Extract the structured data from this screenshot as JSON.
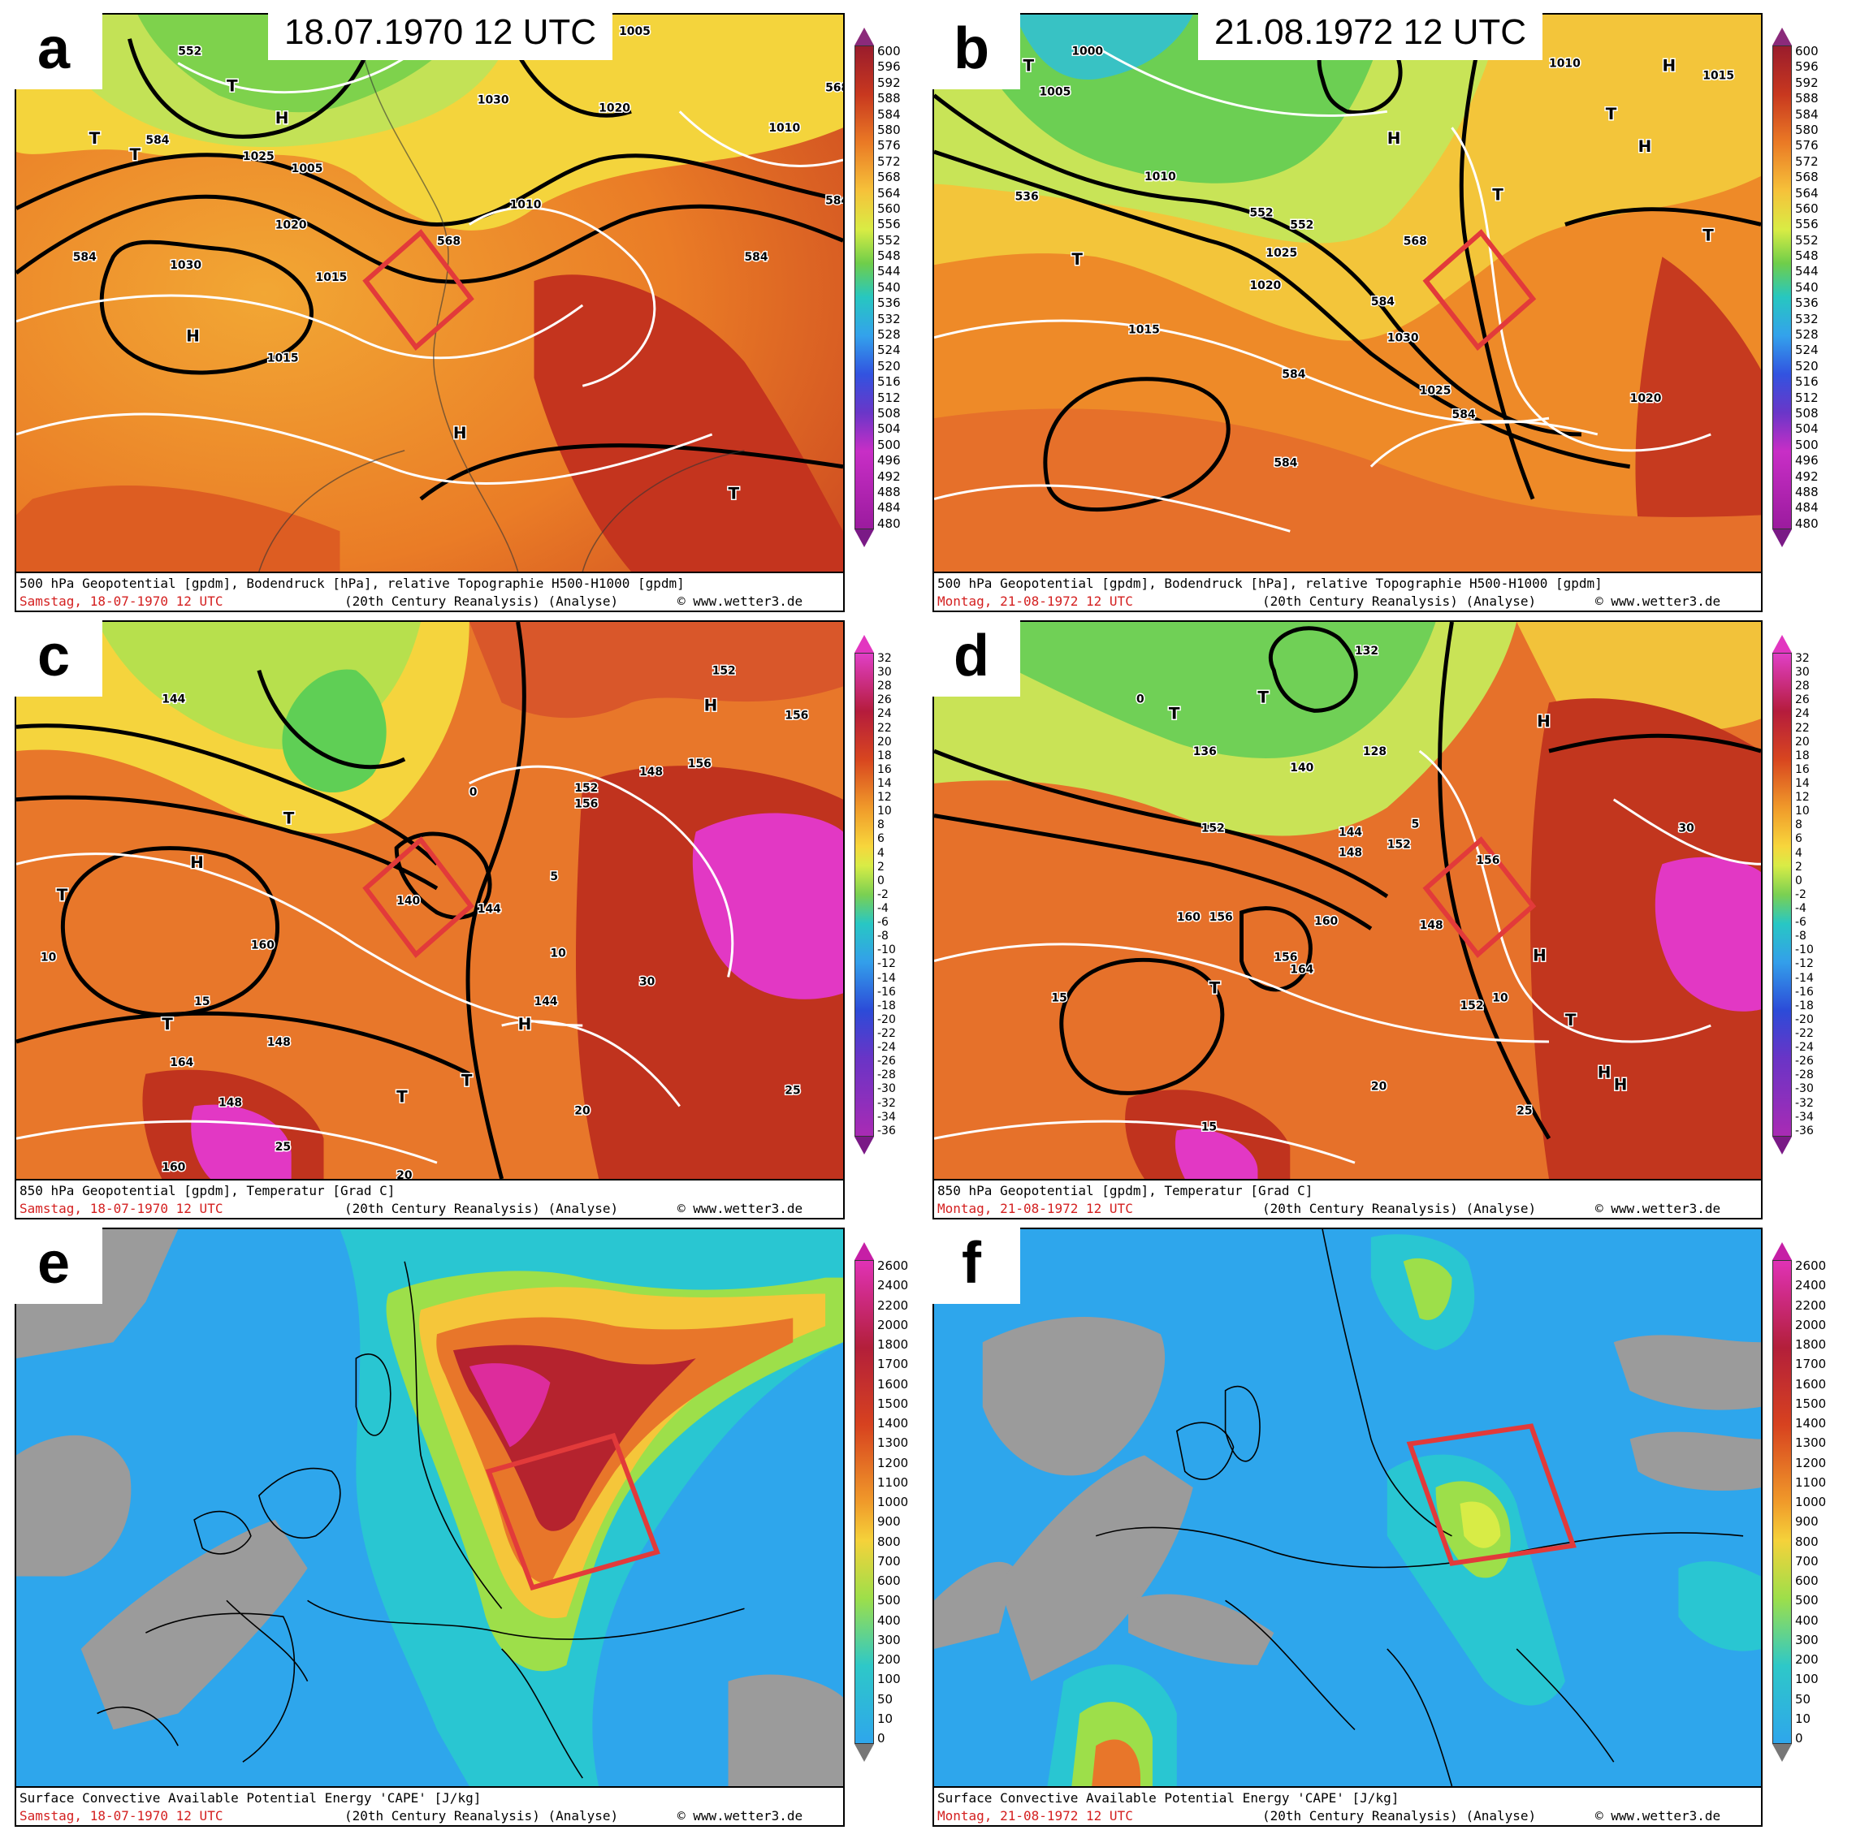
{
  "panels": [
    {
      "id": "a",
      "letter": "a",
      "date": "18.07.1970  12 UTC",
      "caption1": "500 hPa Geopotential [gpdm], Bodendruck [hPa], relative Topographie H500-H1000 [gpdm]",
      "day": "Samstag, 18-07-1970  12 UTC",
      "source": "(20th Century Reanalysis)  (Analyse)",
      "web": "© www.wetter3.de"
    },
    {
      "id": "b",
      "letter": "b",
      "date": "21.08.1972  12 UTC",
      "caption1": "500 hPa Geopotential [gpdm], Bodendruck [hPa], relative Topographie H500-H1000 [gpdm]",
      "day": "Montag, 21-08-1972  12 UTC",
      "source": "(20th Century Reanalysis)  (Analyse)",
      "web": "© www.wetter3.de"
    },
    {
      "id": "c",
      "letter": "c",
      "caption1": "850 hPa Geopotential [gpdm], Temperatur [Grad C]",
      "day": "Samstag, 18-07-1970  12 UTC",
      "source": "(20th Century Reanalysis)  (Analyse)",
      "web": "© www.wetter3.de"
    },
    {
      "id": "d",
      "letter": "d",
      "caption1": "850 hPa Geopotential [gpdm], Temperatur [Grad C]",
      "day": "Montag, 21-08-1972  12 UTC",
      "source": "(20th Century Reanalysis)  (Analyse)",
      "web": "© www.wetter3.de"
    },
    {
      "id": "e",
      "letter": "e",
      "caption1": "Surface Convective Available Potential Energy 'CAPE' [J/kg]",
      "day": "Samstag, 18-07-1970  12 UTC",
      "source": "(20th Century Reanalysis)  (Analyse)",
      "web": "© www.wetter3.de"
    },
    {
      "id": "f",
      "letter": "f",
      "caption1": "Surface Convective Available Potential Energy 'CAPE' [J/kg]",
      "day": "Montag, 21-08-1972  12 UTC",
      "source": "(20th Century Reanalysis)  (Analyse)",
      "web": "© www.wetter3.de"
    }
  ],
  "scales": {
    "geopotential": [
      "600",
      "596",
      "592",
      "588",
      "584",
      "580",
      "576",
      "572",
      "568",
      "564",
      "560",
      "556",
      "552",
      "548",
      "544",
      "540",
      "536",
      "532",
      "528",
      "524",
      "520",
      "516",
      "512",
      "508",
      "504",
      "500",
      "496",
      "492",
      "488",
      "484",
      "480"
    ],
    "temperature": [
      "32",
      "30",
      "28",
      "26",
      "24",
      "22",
      "20",
      "18",
      "16",
      "14",
      "12",
      "10",
      "8",
      "6",
      "4",
      "2",
      "0",
      "-2",
      "-4",
      "-6",
      "-8",
      "-10",
      "-12",
      "-14",
      "-16",
      "-18",
      "-20",
      "-22",
      "-24",
      "-26",
      "-28",
      "-30",
      "-32",
      "-34",
      "-36"
    ],
    "cape": [
      "2600",
      "2400",
      "2200",
      "2000",
      "1800",
      "1700",
      "1600",
      "1500",
      "1400",
      "1300",
      "1200",
      "1100",
      "1000",
      "900",
      "800",
      "700",
      "600",
      "500",
      "400",
      "300",
      "200",
      "100",
      "50",
      "10",
      "0"
    ]
  },
  "map_labels": {
    "a": [
      "552",
      "568",
      "584",
      "584",
      "568",
      "584",
      "584",
      "1010",
      "1005",
      "1015",
      "1030",
      "1030",
      "1025",
      "1020",
      "1015",
      "1020",
      "1005",
      "1010",
      "1015",
      "1020",
      "T",
      "T",
      "H",
      "H",
      "H",
      "T",
      "T"
    ],
    "b": [
      "536",
      "552",
      "552",
      "568",
      "568",
      "584",
      "584",
      "584",
      "584",
      "1000",
      "1005",
      "1010",
      "1015",
      "1020",
      "1025",
      "1030",
      "1025",
      "1020",
      "1015",
      "1010",
      "T",
      "T",
      "H",
      "T",
      "T",
      "H",
      "H",
      "T"
    ],
    "c": [
      "144",
      "144",
      "140",
      "148",
      "152",
      "156",
      "160",
      "164",
      "148",
      "152",
      "156",
      "144",
      "148",
      "160",
      "156",
      "10",
      "15",
      "20",
      "25",
      "5",
      "0",
      "10",
      "20",
      "25",
      "30",
      "H",
      "T",
      "T",
      "H",
      "T",
      "H",
      "T",
      "T"
    ],
    "d": [
      "132",
      "128",
      "136",
      "140",
      "144",
      "148",
      "152",
      "156",
      "160",
      "164",
      "148",
      "152",
      "156",
      "152",
      "160",
      "156",
      "15",
      "10",
      "5",
      "0",
      "20",
      "25",
      "30",
      "15",
      "H",
      "T",
      "T",
      "T",
      "H",
      "H",
      "T",
      "H"
    ],
    "e": [],
    "f": []
  }
}
